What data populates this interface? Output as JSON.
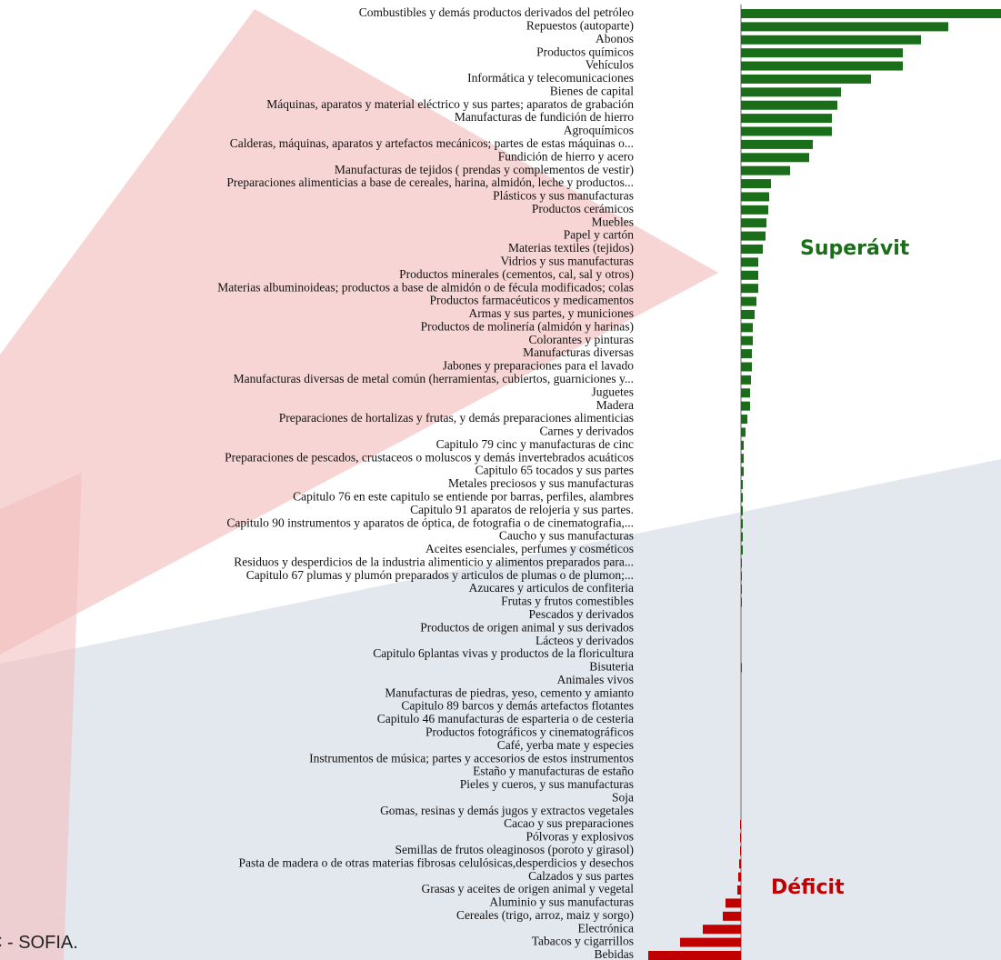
{
  "chart_data": {
    "type": "barh",
    "categories": [
      "Combustibles y demás productos derivados del petróleo",
      "Repuestos (autoparte)",
      "Abonos",
      "Productos químicos",
      "Vehículos",
      "Informática y telecomunicaciones",
      "Bienes de capital",
      "Máquinas, aparatos y material eléctrico y sus partes; aparatos de grabación",
      "Manufacturas de fundición de hierro",
      "Agroquímicos",
      "Calderas, máquinas, aparatos y artefactos mecánicos; partes de estas máquinas o...",
      "Fundición de hierro y acero",
      "Manufacturas de tejidos ( prendas y complementos de vestir)",
      "Preparaciones alimenticias a base de cereales, harina, almidón, leche y productos...",
      "Plásticos y sus manufacturas",
      "Productos cerámicos",
      "Muebles",
      "Papel y cartón",
      "Materias textiles (tejidos)",
      "Vidrios y sus manufacturas",
      "Productos minerales (cementos, cal, sal y otros)",
      "Materias albuminoideas; productos a base de almidón o de fécula modificados; colas",
      "Productos farmacéuticos y medicamentos",
      "Armas y sus partes, y municiones",
      "Productos de molinería (almidón y harinas)",
      "Colorantes y pinturas",
      "Manufacturas diversas",
      "Jabones y preparaciones para el lavado",
      "Manufacturas diversas de metal común (herramientas, cubiertos, guarniciones y...",
      "Juguetes",
      "Madera",
      "Preparaciones de hortalizas y frutas, y demás preparaciones alimenticias",
      "Carnes y derivados",
      "Capitulo 79 cinc y manufacturas de cinc",
      "Preparaciones de pescados, crustaceos o moluscos y demás invertebrados acuáticos",
      "Capitulo 65 tocados y sus partes",
      "Metales preciosos y sus manufacturas",
      "Capitulo 76 en este capitulo se entiende por barras, perfiles, alambres",
      "Capitulo 91 aparatos de relojeria y sus partes.",
      "Capitulo 90 instrumentos y aparatos de óptica, de fotografia o de cinematografia,...",
      "Caucho y sus manufacturas",
      "Aceites esenciales, perfumes y cosméticos",
      "Residuos y desperdicios de la industria alimenticio y alimentos preparados para...",
      "Capitulo 67 plumas y plumón preparados y articulos de plumas o de plumon;...",
      "Azucares y articulos de confiteria",
      "Frutas y frutos comestibles",
      "Pescados y derivados",
      "Productos de origen animal y sus derivados",
      "Lácteos y derivados",
      "Capitulo 6plantas vivas y productos de la floricultura",
      "Bisuteria",
      "Animales vivos",
      "Manufacturas de piedras, yeso, cemento y amianto",
      "Capitulo 89 barcos y demás artefactos flotantes",
      "Capitulo 46 manufacturas de esparteria o de cesteria",
      "Productos fotográficos y cinematográficos",
      "Café, yerba mate y especies",
      "Instrumentos de música; partes y accesorios de estos instrumentos",
      "Estaño y manufacturas de estaño",
      "Pieles y cueros, y sus manufacturas",
      "Soja",
      "Gomas, resinas y demás jugos y extractos vegetales",
      "Cacao y sus preparaciones",
      "Pólvoras y explosivos",
      "Semillas de frutos oleaginosos (poroto y girasol)",
      "Pasta de madera o de otras materias fibrosas celulósicas,desperdicios y desechos",
      "Calzados y sus partes",
      "Grasas y aceites de origen animal y vegetal",
      "Aluminio y sus manufacturas",
      "Cereales (trigo, arroz, maiz y sorgo)",
      "Electrónica",
      "Tabacos y cigarrillos",
      "Bebidas"
    ],
    "values": [
      286,
      228,
      198,
      178,
      178,
      143,
      110,
      106,
      100,
      100,
      79,
      75,
      54,
      33,
      31,
      30,
      28,
      27,
      24,
      19,
      19,
      19,
      17,
      15,
      13,
      13,
      12,
      12,
      11,
      10,
      10,
      7,
      5,
      3,
      3,
      3,
      2,
      2,
      2,
      2,
      2,
      2,
      1,
      1,
      1,
      1,
      0,
      0,
      0,
      0,
      1,
      0,
      0,
      0,
      0,
      0,
      0,
      0,
      0,
      0,
      0,
      0,
      -1,
      -1,
      -1,
      -2,
      -3,
      -4,
      -17,
      -20,
      -42,
      -67,
      -102
    ],
    "color": "#1a6e1a",
    "negative_color": "#c00000",
    "annotations": [
      {
        "text": "Superávit",
        "color": "#1a6e1a"
      },
      {
        "text": "Déficit",
        "color": "#c00000"
      }
    ],
    "footer": "C - SOFIA."
  }
}
